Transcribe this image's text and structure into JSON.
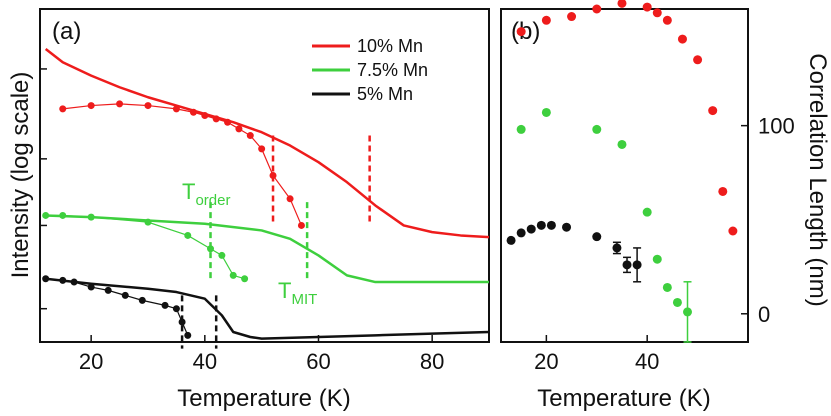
{
  "colors": {
    "red": "#ee1c1c",
    "green": "#3ecf3e",
    "black": "#111111"
  },
  "chart_data": [
    {
      "type": "line",
      "panel_label": "(a)",
      "xlabel": "Temperature (K)",
      "ylabel": "Intensity (log scale)",
      "xlim": [
        11,
        90
      ],
      "ylim": [
        0,
        100
      ],
      "x_ticks": [
        20,
        40,
        60,
        80
      ],
      "y_tick_values": [
        10,
        35,
        55,
        82
      ],
      "y_tick_labels_shown": false,
      "grid": false,
      "legend_position": "top-right",
      "legend": [
        {
          "name": "10% Mn",
          "color": "#ee1c1c"
        },
        {
          "name": "7.5% Mn",
          "color": "#3ecf3e"
        },
        {
          "name": "5% Mn",
          "color": "#111111"
        }
      ],
      "series": [
        {
          "name": "10% Mn",
          "color": "#ee1c1c",
          "curve": {
            "x": [
              12,
              15,
              20,
              25,
              30,
              35,
              40,
              45,
              50,
              55,
              60,
              65,
              70,
              75,
              80,
              85,
              90
            ],
            "y": [
              88,
              84,
              80,
              76.5,
              73.5,
              71,
              68.5,
              66,
              63,
              59,
              54,
              48,
              41,
              35,
              33,
              32,
              31.5
            ]
          },
          "points": {
            "x": [
              15,
              20,
              25,
              30,
              35,
              38,
              40,
              42,
              44,
              46,
              48,
              50,
              52,
              55,
              57
            ],
            "y": [
              70,
              71,
              71.5,
              71,
              70,
              69,
              68,
              67,
              66,
              64,
              62,
              58,
              50,
              43,
              35
            ]
          },
          "transition_markers_x": [
            52,
            69
          ]
        },
        {
          "name": "7.5% Mn",
          "color": "#3ecf3e",
          "curve": {
            "x": [
              12,
              20,
              30,
              40,
              50,
              55,
              60,
              65,
              70,
              75,
              80,
              90
            ],
            "y": [
              38,
              37.5,
              36.5,
              35.5,
              33.5,
              31,
              26,
              20,
              18,
              18,
              18,
              18
            ]
          },
          "points": {
            "x": [
              12,
              15,
              20,
              30,
              37,
              41,
              43,
              45,
              47
            ],
            "y": [
              38,
              38,
              37.5,
              36,
              32,
              28,
              26,
              20,
              19
            ]
          },
          "transition_markers_x": [
            41,
            58
          ]
        },
        {
          "name": "5% Mn",
          "color": "#111111",
          "curve": {
            "x": [
              12,
              20,
              30,
              35,
              40,
              43,
              45,
              48,
              50,
              60,
              70,
              80,
              90
            ],
            "y": [
              19,
              17.5,
              16,
              15,
              13,
              8,
              3,
              1.5,
              1,
              1.5,
              2,
              2.5,
              3
            ]
          },
          "points": {
            "x": [
              12,
              15,
              17,
              20,
              23,
              26,
              29,
              33,
              35,
              36,
              37
            ],
            "y": [
              19,
              18.5,
              18,
              16.5,
              15.5,
              14,
              12.5,
              11,
              10,
              6,
              2
            ]
          },
          "transition_markers_x": [
            36,
            42
          ]
        }
      ],
      "annotations": [
        {
          "text": "T",
          "subscript": "order",
          "color": "#3ecf3e"
        },
        {
          "text": "T",
          "subscript": "MIT",
          "color": "#3ecf3e"
        }
      ]
    },
    {
      "type": "scatter",
      "panel_label": "(b)",
      "xlabel": "Temperature (K)",
      "ylabel": "Correlation Length (nm)",
      "xlim": [
        11,
        60
      ],
      "ylim": [
        -15,
        162
      ],
      "x_ticks": [
        20,
        40
      ],
      "y_ticks": [
        0,
        100
      ],
      "y_axis_side": "right",
      "grid": false,
      "series": [
        {
          "name": "10% Mn",
          "color": "#ee1c1c",
          "x": [
            15,
            20,
            25,
            30,
            35,
            40,
            42,
            44,
            47,
            50,
            53,
            55,
            57
          ],
          "y": [
            150,
            156,
            158,
            162,
            165,
            163,
            160,
            156,
            146,
            135,
            108,
            65,
            44
          ]
        },
        {
          "name": "7.5% Mn",
          "color": "#3ecf3e",
          "x": [
            15,
            20,
            30,
            35,
            40,
            42,
            44,
            46,
            48
          ],
          "y": [
            98,
            107,
            98,
            90,
            54,
            29,
            14,
            6,
            1
          ],
          "error": [
            0,
            0,
            0,
            0,
            0,
            0,
            0,
            0,
            16
          ]
        },
        {
          "name": "5% Mn",
          "color": "#111111",
          "x": [
            13,
            15,
            17,
            19,
            21,
            24,
            30,
            34,
            36,
            38
          ],
          "y": [
            39,
            43,
            45,
            47,
            47,
            46,
            41,
            35,
            26,
            26
          ],
          "error": [
            0,
            0,
            0,
            0,
            0,
            0,
            0,
            3,
            4,
            9
          ]
        }
      ]
    }
  ]
}
